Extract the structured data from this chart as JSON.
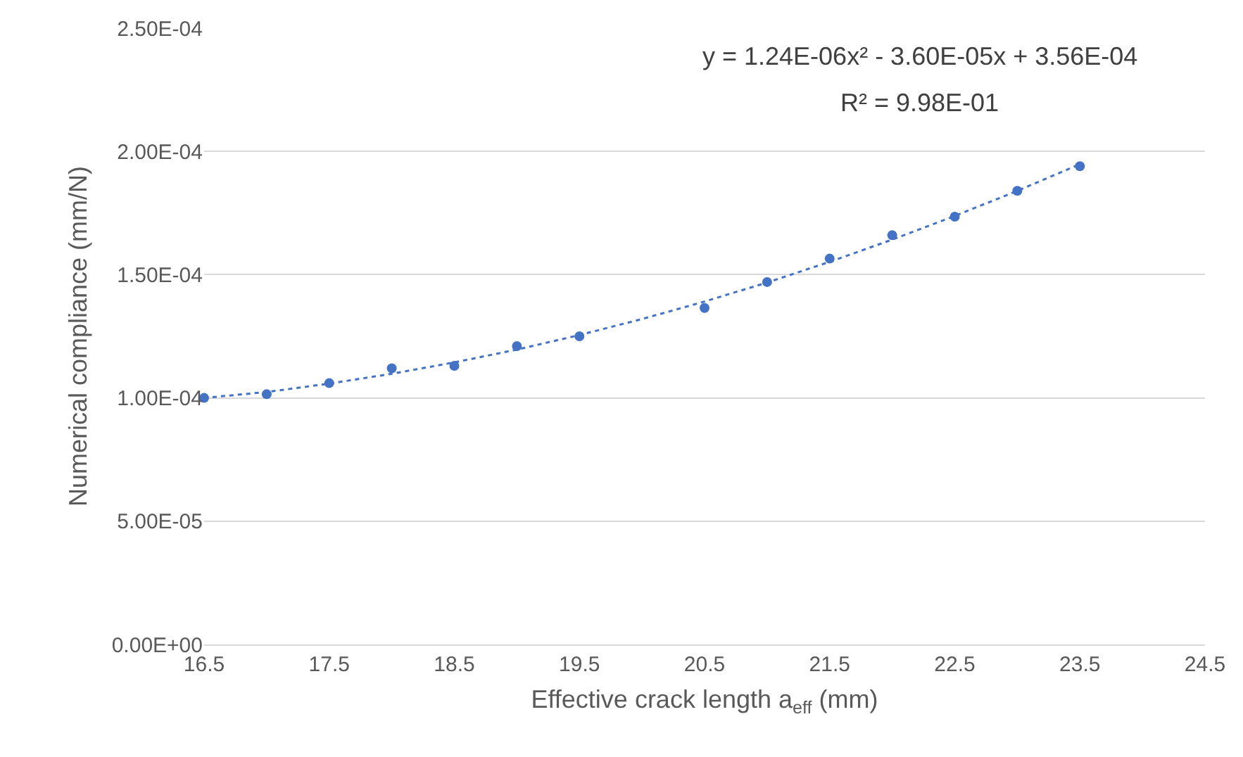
{
  "chart_data": {
    "type": "scatter",
    "xlabel": "Effective crack length a$_{eff}$ (mm)",
    "ylabel": "Numerical compliance (mm/N)",
    "annotations": [
      "y = 1.24E-06x² - 3.60E-05x + 3.56E-04",
      "R² = 9.98E-01"
    ],
    "series": [
      {
        "color": "#4472c4",
        "marker": "circle",
        "x": [
          16.5,
          17,
          17.5,
          18,
          18.5,
          19,
          19.5,
          20.5,
          21,
          21.5,
          22,
          22.5,
          23,
          23.5
        ],
        "values": [
          0.0001,
          0.0001015,
          0.000106,
          0.000112,
          0.000113,
          0.000121,
          0.000125,
          0.0001365,
          0.000147,
          0.0001565,
          0.000166,
          0.0001735,
          0.000184,
          0.000194
        ]
      },
      {
        "type": "line",
        "color": "#4472c4",
        "line_style": "dotted",
        "marker": "none",
        "x": [
          16.5,
          17,
          17.5,
          18,
          18.5,
          19,
          19.5,
          20,
          20.5,
          21,
          21.5,
          22,
          22.5,
          23,
          23.5
        ],
        "values": [
          0.0001,
          0.0001024,
          0.0001058,
          0.0001098,
          0.0001144,
          0.0001196,
          0.0001255,
          0.000132,
          0.0001391,
          0.0001468,
          0.0001552,
          0.0001642,
          0.0001738,
          0.000184,
          0.0001948
        ]
      }
    ],
    "xlim": [
      16.5,
      24.5
    ],
    "xticks": [
      16.5,
      17.5,
      18.5,
      19.5,
      20.5,
      21.5,
      22.5,
      23.5,
      24.5
    ],
    "ylim": [
      0,
      0.00025
    ],
    "yticks": [
      {
        "value": 0,
        "label": "0.00E+00"
      },
      {
        "value": 5e-05,
        "label": "5.00E-05"
      },
      {
        "value": 0.0001,
        "label": "1.00E-04"
      },
      {
        "value": 0.00015,
        "label": "1.50E-04"
      },
      {
        "value": 0.0002,
        "label": "2.00E-04"
      },
      {
        "value": 0.00025,
        "label": "2.50E-04"
      }
    ],
    "grid": "y"
  }
}
